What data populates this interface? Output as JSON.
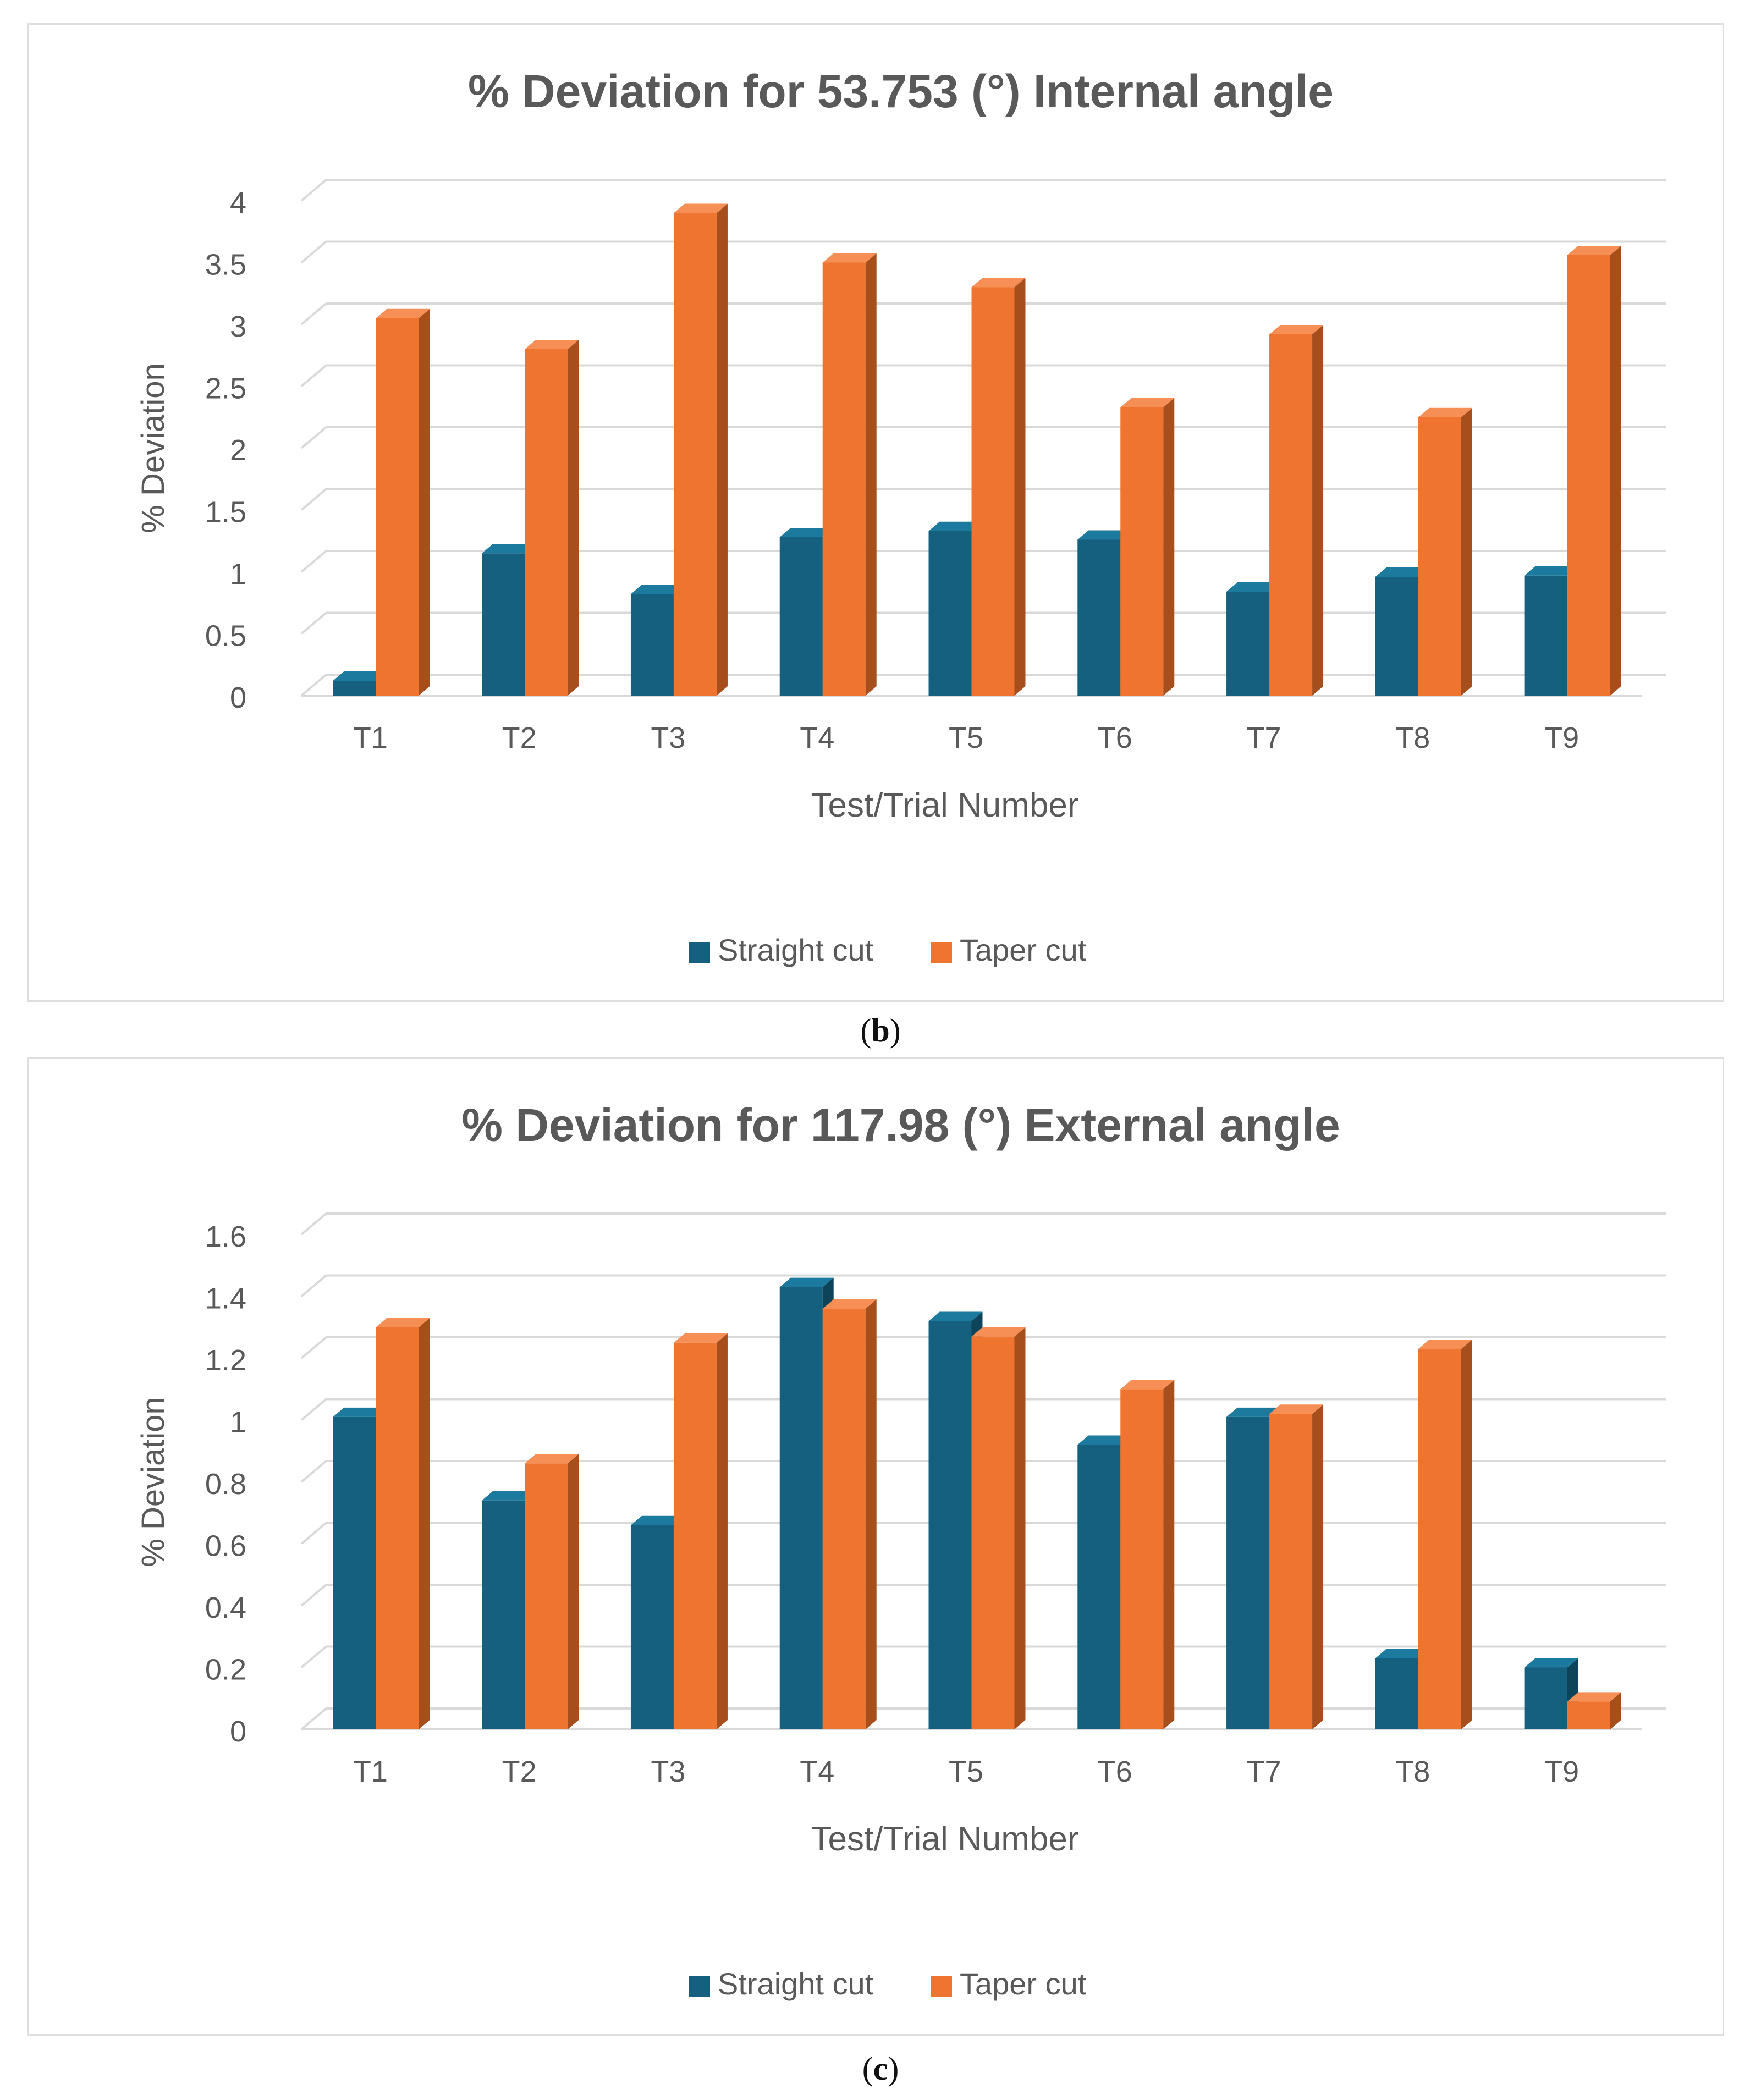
{
  "colors": {
    "straight": "#14607e",
    "straight_side": "#0d4459",
    "straight_top": "#1c7a9e",
    "taper": "#ee7430",
    "taper_side": "#a64e1c",
    "taper_top": "#f58f55",
    "grid": "#d9d9d9",
    "text": "#595959",
    "title": "#595959"
  },
  "captions": {
    "b": "b",
    "c": "c"
  },
  "chart_data": [
    {
      "type": "bar",
      "title": "% Deviation for 53.753 (°) Internal angle",
      "xlabel": "Test/Trial Number",
      "ylabel": "% Deviation",
      "ylim": [
        0,
        4
      ],
      "yticks": [
        0,
        0.5,
        1,
        1.5,
        2,
        2.5,
        3,
        3.5,
        4
      ],
      "ytick_labels": [
        "0",
        "0.5",
        "1",
        "1.5",
        "2",
        "2.5",
        "3",
        "3.5",
        "4"
      ],
      "categories": [
        "T1",
        "T2",
        "T3",
        "T4",
        "T5",
        "T6",
        "T7",
        "T8",
        "T9"
      ],
      "series": [
        {
          "name": "Straight cut",
          "values": [
            0.12,
            1.15,
            0.82,
            1.28,
            1.33,
            1.26,
            0.84,
            0.96,
            0.97
          ]
        },
        {
          "name": "Taper cut",
          "values": [
            3.05,
            2.8,
            3.9,
            3.5,
            3.3,
            2.33,
            2.92,
            2.25,
            3.56
          ]
        }
      ],
      "legend": "bottom"
    },
    {
      "type": "bar",
      "title": "% Deviation for 117.98 (°) External angle",
      "xlabel": "Test/Trial Number",
      "ylabel": "% Deviation",
      "ylim": [
        0,
        1.6
      ],
      "yticks": [
        0,
        0.2,
        0.4,
        0.6,
        0.8,
        1,
        1.2,
        1.4,
        1.6
      ],
      "ytick_labels": [
        "0",
        "0.2",
        "0.4",
        "0.6",
        "0.8",
        "1",
        "1.2",
        "1.4",
        "1.6"
      ],
      "categories": [
        "T1",
        "T2",
        "T3",
        "T4",
        "T5",
        "T6",
        "T7",
        "T8",
        "T9"
      ],
      "series": [
        {
          "name": "Straight cut",
          "values": [
            1.01,
            0.74,
            0.66,
            1.43,
            1.32,
            0.92,
            1.01,
            0.23,
            0.2
          ]
        },
        {
          "name": "Taper cut",
          "values": [
            1.3,
            0.86,
            1.25,
            1.36,
            1.27,
            1.1,
            1.02,
            1.23,
            0.09
          ]
        }
      ],
      "legend": "bottom"
    }
  ]
}
